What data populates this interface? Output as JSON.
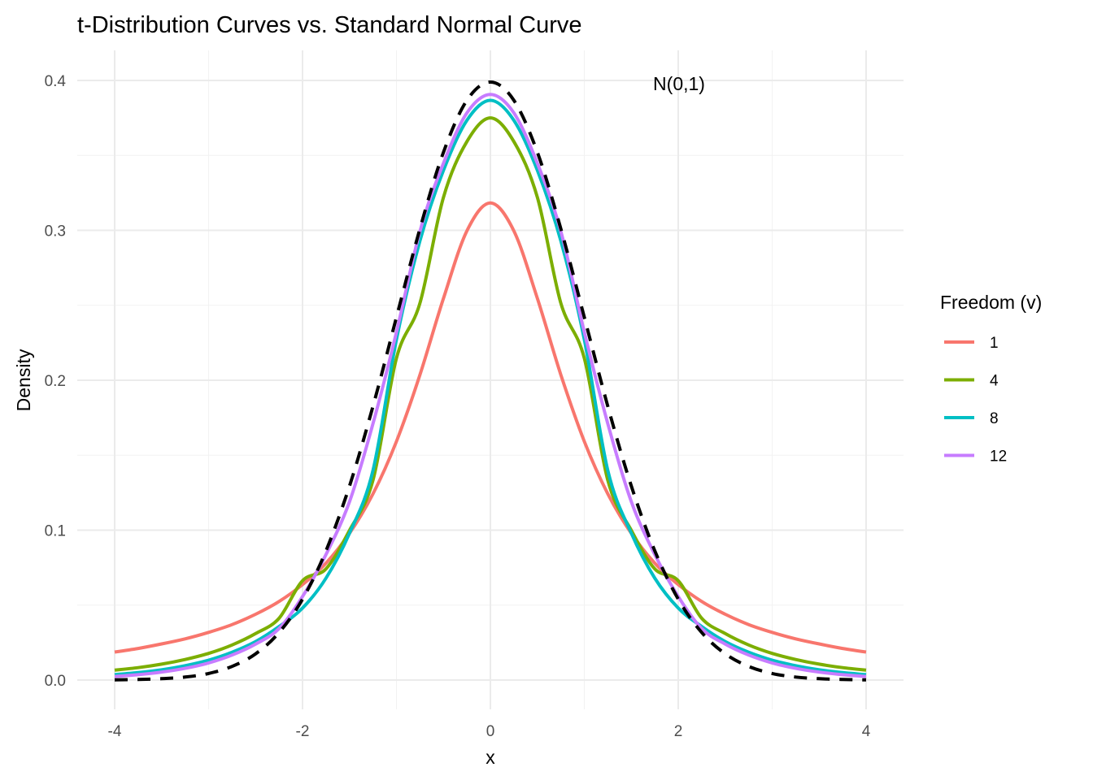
{
  "chart_data": {
    "type": "line",
    "title": "t-Distribution Curves vs. Standard Normal Curve",
    "xlabel": "x",
    "ylabel": "Density",
    "xlim": [
      -4.4,
      4.4
    ],
    "ylim": [
      -0.019,
      0.42
    ],
    "x_ticks": [
      -4,
      -2,
      0,
      2,
      4
    ],
    "x_tick_labels": [
      "-4",
      "-2",
      "0",
      "2",
      "4"
    ],
    "y_ticks": [
      0.0,
      0.1,
      0.2,
      0.3,
      0.4
    ],
    "y_tick_labels": [
      "0.0",
      "0.1",
      "0.2",
      "0.3",
      "0.4"
    ],
    "grid": true,
    "legend": {
      "title": "Freedom (v)",
      "position": "right"
    },
    "annotation": {
      "text": "N(0,1)",
      "x": 1.8,
      "y": 0.4
    },
    "x": [
      -4,
      -3.75,
      -3.5,
      -3.25,
      -3,
      -2.75,
      -2.5,
      -2.25,
      -2,
      -1.75,
      -1.5,
      -1.25,
      -1,
      -0.75,
      -0.5,
      -0.25,
      0,
      0.25,
      0.5,
      0.75,
      1,
      1.25,
      1.5,
      1.75,
      2,
      2.25,
      2.5,
      2.75,
      3,
      3.25,
      3.5,
      3.75,
      4
    ],
    "series": [
      {
        "name": "1",
        "color": "#F8766D",
        "dashed": false,
        "values": [
          0.0187,
          0.0211,
          0.0241,
          0.0275,
          0.0318,
          0.037,
          0.0439,
          0.0524,
          0.0637,
          0.078,
          0.0979,
          0.1242,
          0.1592,
          0.2037,
          0.2546,
          0.2996,
          0.3183,
          0.2996,
          0.2546,
          0.2037,
          0.1592,
          0.1242,
          0.0979,
          0.078,
          0.0637,
          0.0524,
          0.0439,
          0.037,
          0.0318,
          0.0275,
          0.0241,
          0.0211,
          0.0187
        ]
      },
      {
        "name": "4",
        "color": "#7CAE00",
        "dashed": false,
        "values": [
          0.0066,
          0.0083,
          0.0106,
          0.0137,
          0.0178,
          0.0234,
          0.031,
          0.0412,
          0.0663,
          0.0742,
          0.0999,
          0.1333,
          0.2147,
          0.2515,
          0.322,
          0.3592,
          0.375,
          0.3592,
          0.322,
          0.2515,
          0.2147,
          0.1333,
          0.0999,
          0.0742,
          0.0663,
          0.0412,
          0.031,
          0.0234,
          0.0178,
          0.0137,
          0.0106,
          0.0083,
          0.0066
        ]
      },
      {
        "name": "8",
        "color": "#00BFC4",
        "dashed": false,
        "values": [
          0.0036,
          0.005,
          0.0069,
          0.0096,
          0.0133,
          0.0186,
          0.0257,
          0.0357,
          0.048,
          0.068,
          0.098,
          0.1398,
          0.2272,
          0.293,
          0.34,
          0.3734,
          0.3867,
          0.3734,
          0.34,
          0.293,
          0.2272,
          0.1398,
          0.098,
          0.068,
          0.048,
          0.0357,
          0.0257,
          0.0186,
          0.0133,
          0.0096,
          0.0069,
          0.005,
          0.0036
        ]
      },
      {
        "name": "12",
        "color": "#C77CFF",
        "dashed": false,
        "values": [
          0.0024,
          0.0036,
          0.0053,
          0.0078,
          0.0114,
          0.0167,
          0.024,
          0.0343,
          0.0557,
          0.0838,
          0.119,
          0.171,
          0.2321,
          0.2994,
          0.3447,
          0.3783,
          0.3907,
          0.3783,
          0.3447,
          0.2994,
          0.2321,
          0.171,
          0.119,
          0.0838,
          0.0557,
          0.0343,
          0.024,
          0.0167,
          0.0114,
          0.0078,
          0.0053,
          0.0036,
          0.0024
        ]
      },
      {
        "name": "N(0,1)",
        "color": "#000000",
        "dashed": true,
        "values": [
          0.0001,
          0.0004,
          0.0009,
          0.002,
          0.0044,
          0.0091,
          0.0175,
          0.0317,
          0.054,
          0.0863,
          0.1295,
          0.1826,
          0.242,
          0.3011,
          0.3521,
          0.3867,
          0.3989,
          0.3867,
          0.3521,
          0.3011,
          0.242,
          0.1826,
          0.1295,
          0.0863,
          0.054,
          0.0317,
          0.0175,
          0.0091,
          0.0044,
          0.002,
          0.0009,
          0.0004,
          0.0001
        ]
      }
    ]
  }
}
